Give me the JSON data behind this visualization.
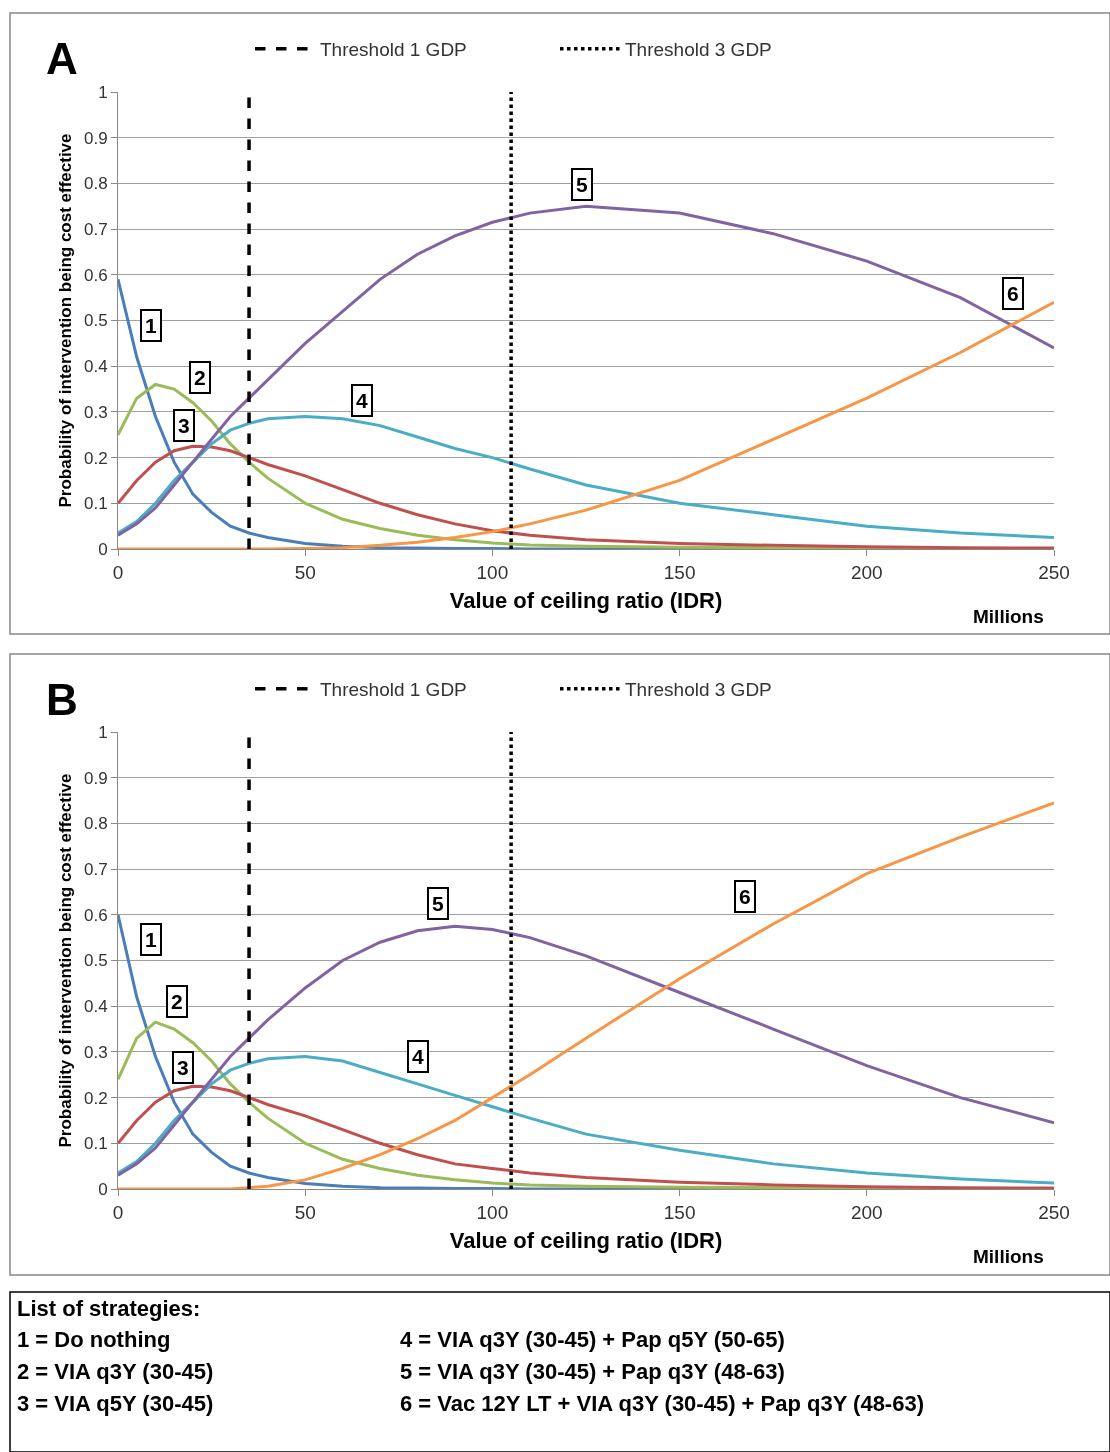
{
  "chart_data": [
    {
      "type": "line",
      "title": "A",
      "xlabel": "Value of ceiling ratio (IDR)",
      "ylabel": "Probability of intervention being cost effective",
      "x": [
        0,
        5,
        10,
        15,
        20,
        25,
        30,
        35,
        40,
        50,
        60,
        70,
        80,
        90,
        100,
        110,
        125,
        150,
        175,
        200,
        225,
        250
      ],
      "series": [
        {
          "color": "#4a7ebb",
          "values": [
            0.59,
            0.42,
            0.29,
            0.19,
            0.12,
            0.08,
            0.05,
            0.035,
            0.025,
            0.012,
            0.006,
            0.003,
            0.002,
            0.001,
            0.001,
            0,
            0,
            0,
            0,
            null,
            null,
            null
          ]
        },
        {
          "color": "#9bbb59",
          "values": [
            0.25,
            0.33,
            0.36,
            0.35,
            0.32,
            0.28,
            0.23,
            0.19,
            0.155,
            0.1,
            0.065,
            0.045,
            0.03,
            0.02,
            0.013,
            0.009,
            0.006,
            0.004,
            0.003,
            0.002,
            0.001,
            0.001
          ]
        },
        {
          "color": "#c0504d",
          "values": [
            0.1,
            0.15,
            0.19,
            0.215,
            0.225,
            0.223,
            0.215,
            0.2,
            0.185,
            0.16,
            0.13,
            0.1,
            0.075,
            0.055,
            0.04,
            0.03,
            0.02,
            0.012,
            0.008,
            0.005,
            0.003,
            0.002
          ]
        },
        {
          "color": "#4bacc6",
          "values": [
            0.035,
            0.06,
            0.1,
            0.15,
            0.19,
            0.23,
            0.26,
            0.275,
            0.285,
            0.29,
            0.285,
            0.27,
            0.245,
            0.22,
            0.2,
            0.175,
            0.14,
            0.1,
            0.075,
            0.05,
            0.035,
            0.025
          ]
        },
        {
          "color": "#8064a2",
          "values": [
            0.03,
            0.055,
            0.09,
            0.14,
            0.19,
            0.24,
            0.29,
            0.33,
            0.37,
            0.45,
            0.52,
            0.59,
            0.645,
            0.685,
            0.715,
            0.735,
            0.75,
            0.735,
            0.69,
            0.63,
            0.55,
            0.44
          ]
        },
        {
          "color": "#f79646",
          "values": [
            0,
            0,
            0,
            0,
            0,
            0,
            0,
            0,
            0,
            0.001,
            0.003,
            0.008,
            0.015,
            0.025,
            0.038,
            0.055,
            0.085,
            0.15,
            0.24,
            0.33,
            0.43,
            0.54
          ]
        }
      ],
      "ref_lines": [
        {
          "axis": "x",
          "value": 35,
          "label": "Threshold 1 GDP",
          "line_style": "dashed",
          "color": "#000000"
        },
        {
          "axis": "x",
          "value": 105,
          "label": "Threshold 3 GDP",
          "line_style": "dotted",
          "color": "#000000"
        }
      ],
      "annotations": [
        {
          "text": "1",
          "x": 8.8,
          "y": 0.49
        },
        {
          "text": "2",
          "x": 21.9,
          "y": 0.376
        },
        {
          "text": "3",
          "x": 17.6,
          "y": 0.27
        },
        {
          "text": "4",
          "x": 65.2,
          "y": 0.326
        },
        {
          "text": "5",
          "x": 124,
          "y": 0.797
        },
        {
          "text": "6",
          "x": 239,
          "y": 0.56
        },
        "Millions"
      ],
      "xlim": [
        0,
        250
      ],
      "xticks": [
        0,
        50,
        100,
        150,
        200,
        250
      ],
      "ylim": [
        0,
        1
      ],
      "yticks": [
        0,
        0.1,
        0.2,
        0.3,
        0.4,
        0.5,
        0.6,
        0.7,
        0.8,
        0.9,
        1
      ],
      "grid": "y",
      "legend": "top",
      "marker": "none",
      "line_style": "solid"
    },
    {
      "type": "line",
      "title": "B",
      "xlabel": "Value of ceiling ratio (IDR)",
      "ylabel": "Probability of intervention being cost effective",
      "x": [
        0,
        5,
        10,
        15,
        20,
        25,
        30,
        35,
        40,
        50,
        60,
        70,
        80,
        90,
        100,
        110,
        125,
        150,
        175,
        200,
        225,
        250
      ],
      "series": [
        {
          "color": "#4a7ebb",
          "values": [
            0.6,
            0.42,
            0.29,
            0.19,
            0.12,
            0.08,
            0.05,
            0.035,
            0.025,
            0.012,
            0.006,
            0.003,
            0.002,
            0.001,
            0.001,
            0,
            0,
            0,
            0,
            null,
            null,
            null
          ]
        },
        {
          "color": "#9bbb59",
          "values": [
            0.24,
            0.33,
            0.365,
            0.35,
            0.32,
            0.28,
            0.23,
            0.19,
            0.155,
            0.1,
            0.065,
            0.045,
            0.03,
            0.02,
            0.013,
            0.009,
            0.006,
            0.004,
            0.003,
            0.002,
            0.001,
            0.001
          ]
        },
        {
          "color": "#c0504d",
          "values": [
            0.1,
            0.15,
            0.19,
            0.215,
            0.225,
            0.223,
            0.215,
            0.2,
            0.185,
            0.16,
            0.13,
            0.1,
            0.075,
            0.055,
            0.045,
            0.035,
            0.025,
            0.015,
            0.009,
            0.005,
            0.003,
            0.002
          ]
        },
        {
          "color": "#4bacc6",
          "values": [
            0.035,
            0.06,
            0.1,
            0.15,
            0.19,
            0.23,
            0.26,
            0.275,
            0.285,
            0.29,
            0.28,
            0.255,
            0.23,
            0.205,
            0.18,
            0.155,
            0.12,
            0.085,
            0.055,
            0.035,
            0.022,
            0.013
          ]
        },
        {
          "color": "#8064a2",
          "values": [
            0.03,
            0.055,
            0.09,
            0.14,
            0.19,
            0.24,
            0.29,
            0.33,
            0.37,
            0.44,
            0.5,
            0.54,
            0.565,
            0.575,
            0.568,
            0.55,
            0.51,
            0.43,
            0.35,
            0.27,
            0.2,
            0.145
          ]
        },
        {
          "color": "#f79646",
          "values": [
            0,
            0,
            0,
            0,
            0,
            0,
            0,
            0.003,
            0.006,
            0.02,
            0.045,
            0.075,
            0.11,
            0.15,
            0.2,
            0.25,
            0.33,
            0.46,
            0.58,
            0.69,
            0.77,
            0.845
          ]
        }
      ],
      "ref_lines": [
        {
          "axis": "x",
          "value": 35,
          "label": "Threshold 1 GDP",
          "line_style": "dashed",
          "color": "#000000"
        },
        {
          "axis": "x",
          "value": 105,
          "label": "Threshold 3 GDP",
          "line_style": "dotted",
          "color": "#000000"
        }
      ],
      "annotations": [
        {
          "text": "1",
          "x": 8.8,
          "y": 0.545
        },
        {
          "text": "2",
          "x": 15.8,
          "y": 0.411
        },
        {
          "text": "3",
          "x": 17.4,
          "y": 0.265
        },
        {
          "text": "4",
          "x": 80.1,
          "y": 0.291
        },
        {
          "text": "5",
          "x": 85.5,
          "y": 0.624
        },
        {
          "text": "6",
          "x": 167.5,
          "y": 0.641
        },
        "Millions"
      ],
      "xlim": [
        0,
        250
      ],
      "xticks": [
        0,
        50,
        100,
        150,
        200,
        250
      ],
      "ylim": [
        0,
        1
      ],
      "yticks": [
        0,
        0.1,
        0.2,
        0.3,
        0.4,
        0.5,
        0.6,
        0.7,
        0.8,
        0.9,
        1
      ],
      "grid": "y",
      "legend": "top",
      "marker": "none",
      "line_style": "solid"
    },
    {
      "type": "other",
      "title": "List of strategies:",
      "annotations": [
        "1 = Do nothing",
        "2 = VIA q3Y (30-45)",
        "3 = VIA q5Y (30-45)",
        "4 = VIA q3Y (30-45) + Pap q5Y (50-65)",
        "5 = VIA q3Y (30-45) + Pap q3Y (48-63)",
        "6 = Vac 12Y LT + VIA q3Y (30-45) + Pap q3Y (48-63)"
      ]
    }
  ]
}
